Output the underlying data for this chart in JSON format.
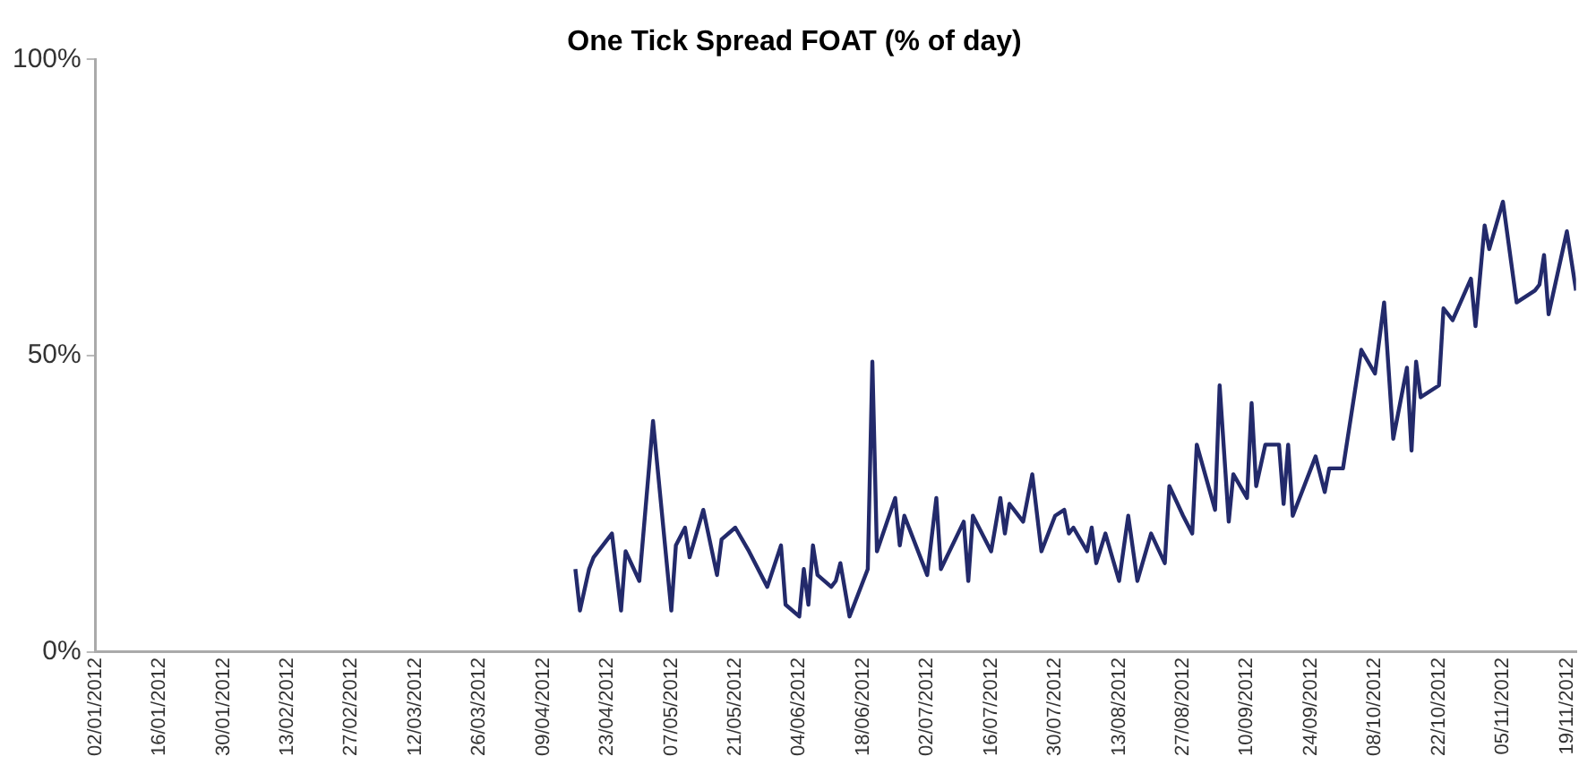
{
  "chart_data": {
    "type": "line",
    "title": "One Tick Spread FOAT (% of day)",
    "xlim": [
      "2012-01-02",
      "2012-11-21"
    ],
    "xticks": [
      {
        "value": "2012-01-02",
        "label": "02/01/2012"
      },
      {
        "value": "2012-01-16",
        "label": "16/01/2012"
      },
      {
        "value": "2012-01-30",
        "label": "30/01/2012"
      },
      {
        "value": "2012-02-13",
        "label": "13/02/2012"
      },
      {
        "value": "2012-02-27",
        "label": "27/02/2012"
      },
      {
        "value": "2012-03-12",
        "label": "12/03/2012"
      },
      {
        "value": "2012-03-26",
        "label": "26/03/2012"
      },
      {
        "value": "2012-04-09",
        "label": "09/04/2012"
      },
      {
        "value": "2012-04-23",
        "label": "23/04/2012"
      },
      {
        "value": "2012-05-07",
        "label": "07/05/2012"
      },
      {
        "value": "2012-05-21",
        "label": "21/05/2012"
      },
      {
        "value": "2012-06-04",
        "label": "04/06/2012"
      },
      {
        "value": "2012-06-18",
        "label": "18/06/2012"
      },
      {
        "value": "2012-07-02",
        "label": "02/07/2012"
      },
      {
        "value": "2012-07-16",
        "label": "16/07/2012"
      },
      {
        "value": "2012-07-30",
        "label": "30/07/2012"
      },
      {
        "value": "2012-08-13",
        "label": "13/08/2012"
      },
      {
        "value": "2012-08-27",
        "label": "27/08/2012"
      },
      {
        "value": "2012-09-10",
        "label": "10/09/2012"
      },
      {
        "value": "2012-09-24",
        "label": "24/09/2012"
      },
      {
        "value": "2012-10-08",
        "label": "08/10/2012"
      },
      {
        "value": "2012-10-22",
        "label": "22/10/2012"
      },
      {
        "value": "2012-11-05",
        "label": "05/11/2012"
      },
      {
        "value": "2012-11-19",
        "label": "19/11/2012"
      }
    ],
    "ylim": [
      0,
      100
    ],
    "yticks": [
      {
        "value": 0,
        "label": "0%"
      },
      {
        "value": 50,
        "label": "50%"
      },
      {
        "value": 100,
        "label": "100%"
      }
    ],
    "grid": false,
    "legend": false,
    "marker": "none",
    "line_style": "solid",
    "series": [
      {
        "color": "#232a6b",
        "x": [
          "2012-04-16",
          "2012-04-17",
          "2012-04-19",
          "2012-04-20",
          "2012-04-24",
          "2012-04-26",
          "2012-04-27",
          "2012-04-30",
          "2012-05-03",
          "2012-05-07",
          "2012-05-08",
          "2012-05-10",
          "2012-05-11",
          "2012-05-14",
          "2012-05-17",
          "2012-05-18",
          "2012-05-21",
          "2012-05-24",
          "2012-05-28",
          "2012-05-31",
          "2012-06-01",
          "2012-06-04",
          "2012-06-05",
          "2012-06-06",
          "2012-06-07",
          "2012-06-08",
          "2012-06-11",
          "2012-06-12",
          "2012-06-13",
          "2012-06-15",
          "2012-06-19",
          "2012-06-20",
          "2012-06-21",
          "2012-06-25",
          "2012-06-26",
          "2012-06-27",
          "2012-07-02",
          "2012-07-04",
          "2012-07-05",
          "2012-07-10",
          "2012-07-11",
          "2012-07-12",
          "2012-07-16",
          "2012-07-18",
          "2012-07-19",
          "2012-07-20",
          "2012-07-23",
          "2012-07-25",
          "2012-07-27",
          "2012-07-30",
          "2012-08-01",
          "2012-08-02",
          "2012-08-03",
          "2012-08-06",
          "2012-08-07",
          "2012-08-08",
          "2012-08-10",
          "2012-08-13",
          "2012-08-15",
          "2012-08-17",
          "2012-08-20",
          "2012-08-23",
          "2012-08-24",
          "2012-08-27",
          "2012-08-29",
          "2012-08-30",
          "2012-09-03",
          "2012-09-04",
          "2012-09-06",
          "2012-09-07",
          "2012-09-10",
          "2012-09-11",
          "2012-09-12",
          "2012-09-14",
          "2012-09-17",
          "2012-09-18",
          "2012-09-19",
          "2012-09-20",
          "2012-09-25",
          "2012-09-27",
          "2012-09-28",
          "2012-10-01",
          "2012-10-05",
          "2012-10-08",
          "2012-10-10",
          "2012-10-12",
          "2012-10-15",
          "2012-10-16",
          "2012-10-17",
          "2012-10-18",
          "2012-10-22",
          "2012-10-23",
          "2012-10-25",
          "2012-10-29",
          "2012-10-30",
          "2012-11-01",
          "2012-11-02",
          "2012-11-05",
          "2012-11-08",
          "2012-11-12",
          "2012-11-13",
          "2012-11-14",
          "2012-11-15",
          "2012-11-19",
          "2012-11-21"
        ],
        "values": [
          14,
          7,
          14,
          16,
          20,
          7,
          17,
          12,
          39,
          7,
          18,
          21,
          16,
          24,
          13,
          19,
          21,
          17,
          11,
          18,
          8,
          6,
          14,
          8,
          18,
          13,
          11,
          12,
          15,
          6,
          14,
          49,
          17,
          26,
          18,
          23,
          13,
          26,
          14,
          22,
          12,
          23,
          17,
          26,
          20,
          25,
          22,
          30,
          17,
          23,
          24,
          20,
          21,
          17,
          21,
          15,
          20,
          12,
          23,
          12,
          20,
          15,
          28,
          23,
          20,
          35,
          24,
          45,
          22,
          30,
          26,
          42,
          28,
          35,
          35,
          25,
          35,
          23,
          33,
          27,
          31,
          31,
          51,
          47,
          59,
          36,
          48,
          34,
          49,
          43,
          45,
          58,
          56,
          63,
          55,
          72,
          68,
          76,
          59,
          61,
          62,
          67,
          57,
          71,
          61
        ]
      }
    ]
  }
}
